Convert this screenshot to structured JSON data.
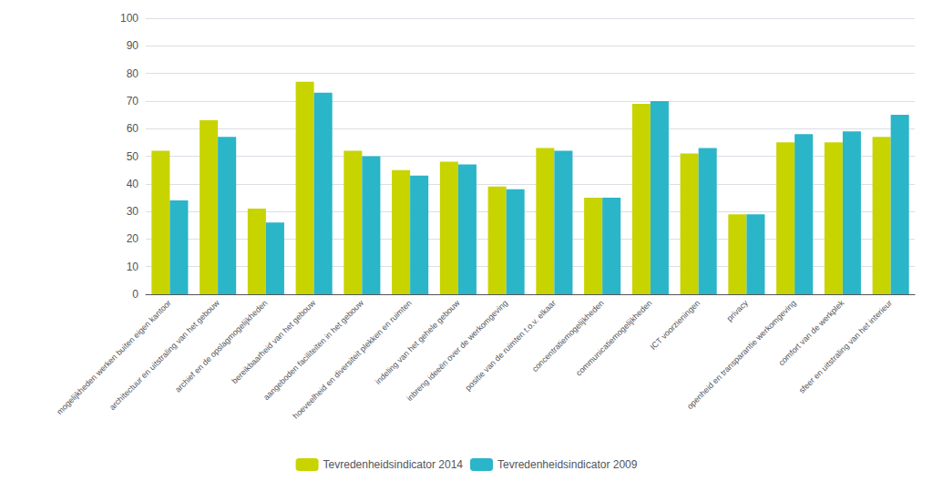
{
  "chart_data": {
    "type": "bar",
    "categories": [
      "mogelijkheden werken buiten eigen kantoor",
      "architectuur en uitstraling van het gebouw",
      "archief en de opslagmogelijkheden",
      "bereikbaarheid van het gebouw",
      "aangeboden faciliteiten in het gebouw",
      "hoeveelheid en diversiteit plekken en ruimten",
      "indeling van het gehele gebouw",
      "inbreng ideeën over de werkomgeving",
      "positie van de ruimten t.o.v. elkaar",
      "concentratiemogelijkheden",
      "communicatiemogelijkheden",
      "ICT voorzieningen",
      "privacy",
      "openheid en transparantie werkomgeving",
      "comfort van de werkplek",
      "sfeer en uitstraling van het interieur"
    ],
    "series": [
      {
        "name": "Tevredenheidsindicator 2014",
        "color": "#c8d400",
        "values": [
          52,
          63,
          31,
          77,
          52,
          45,
          48,
          39,
          53,
          35,
          69,
          51,
          29,
          55,
          55,
          57
        ]
      },
      {
        "name": "Tevredenheidsindicator 2009",
        "color": "#2ab5c8",
        "values": [
          34,
          57,
          26,
          73,
          50,
          43,
          47,
          38,
          52,
          35,
          70,
          53,
          29,
          58,
          59,
          65
        ]
      }
    ],
    "ylim": [
      0,
      100
    ],
    "yticks": [
      0,
      10,
      20,
      30,
      40,
      50,
      60,
      70,
      80,
      90,
      100
    ],
    "grid": true,
    "legend": "bottom"
  }
}
